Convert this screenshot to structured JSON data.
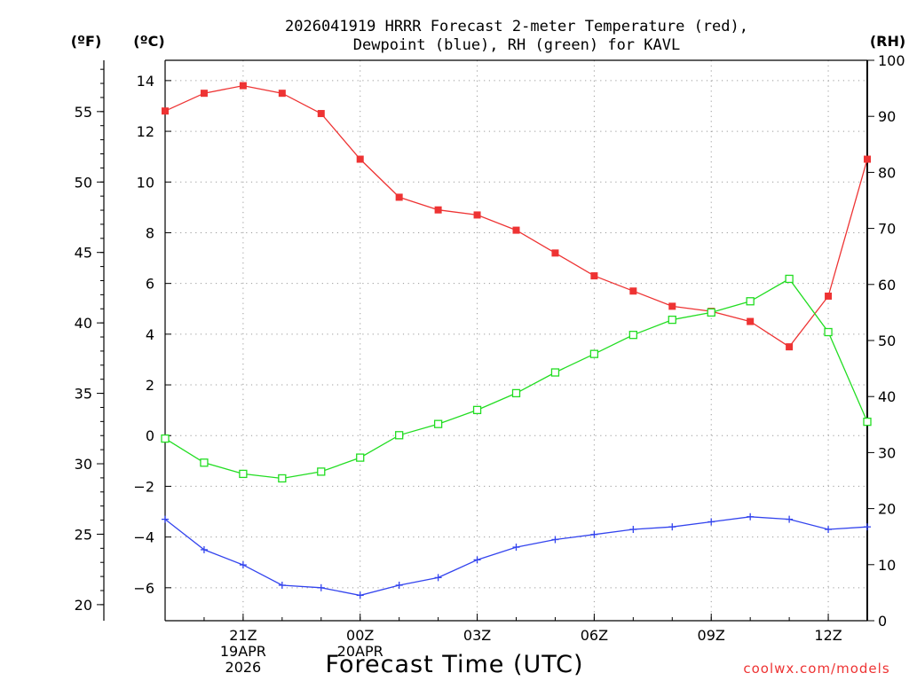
{
  "chart_data": {
    "type": "line",
    "title_line1": "2026041919 HRRR Forecast 2-meter Temperature (red),",
    "title_line2": "Dewpoint (blue), RH (green) for KAVL",
    "xlabel": "Forecast Time (UTC)",
    "watermark": "coolwx.com/models",
    "left_outer_unit": "(ºF)",
    "left_inner_unit": "(ºC)",
    "right_unit": "(RH)",
    "x_hours": [
      0,
      1,
      2,
      3,
      4,
      5,
      6,
      7,
      8,
      9,
      10,
      11,
      12,
      13,
      14,
      15,
      16,
      17,
      18
    ],
    "x_ticks": [
      {
        "hour": 2,
        "label": "21Z",
        "sub1": "19APR",
        "sub2": "2026"
      },
      {
        "hour": 5,
        "label": "00Z",
        "sub1": "20APR",
        "sub2": ""
      },
      {
        "hour": 8,
        "label": "03Z",
        "sub1": "",
        "sub2": ""
      },
      {
        "hour": 11,
        "label": "06Z",
        "sub1": "",
        "sub2": ""
      },
      {
        "hour": 14,
        "label": "09Z",
        "sub1": "",
        "sub2": ""
      },
      {
        "hour": 17,
        "label": "12Z",
        "sub1": "",
        "sub2": ""
      }
    ],
    "celsius_ticks": [
      "−6",
      "−4",
      "−2",
      "0",
      "2",
      "4",
      "6",
      "8",
      "10",
      "12",
      "14"
    ],
    "celsius_tick_values": [
      -6,
      -4,
      -2,
      0,
      2,
      4,
      6,
      8,
      10,
      12,
      14
    ],
    "fahrenheit_ticks": [
      "20",
      "25",
      "30",
      "35",
      "40",
      "45",
      "50",
      "55"
    ],
    "fahrenheit_tick_values": [
      20,
      25,
      30,
      35,
      40,
      45,
      50,
      55
    ],
    "rh_ticks": [
      "0",
      "10",
      "20",
      "30",
      "40",
      "50",
      "60",
      "70",
      "80",
      "90",
      "100"
    ],
    "rh_tick_values": [
      0,
      10,
      20,
      30,
      40,
      50,
      60,
      70,
      80,
      90,
      100
    ],
    "ylim_c": [
      -7.3,
      14.8
    ],
    "ylim_rh": [
      0,
      100
    ],
    "grid": true,
    "colors": {
      "temperature": "#ee3333",
      "dewpoint": "#3344ee",
      "rh": "#22dd22"
    },
    "series": [
      {
        "key": "temperature",
        "axis": "C",
        "marker": "filled-square",
        "values": [
          12.8,
          13.5,
          13.8,
          13.5,
          12.7,
          10.9,
          9.4,
          8.9,
          8.7,
          8.1,
          7.2,
          6.3,
          5.7,
          5.1,
          4.9,
          4.5,
          3.5,
          5.5,
          10.9
        ]
      },
      {
        "key": "dewpoint",
        "axis": "C",
        "marker": "plus",
        "values": [
          -3.3,
          -4.5,
          -5.1,
          -5.9,
          -6.0,
          -6.3,
          -5.9,
          -5.6,
          -4.9,
          -4.4,
          -4.1,
          -3.9,
          -3.7,
          -3.6,
          -3.4,
          -3.2,
          -3.3,
          -3.7,
          -3.6
        ]
      },
      {
        "key": "rh",
        "axis": "RH",
        "marker": "open-square",
        "values": [
          32.5,
          28.2,
          26.2,
          25.4,
          26.6,
          29.1,
          33.1,
          35.1,
          37.6,
          40.6,
          44.3,
          47.6,
          51.0,
          53.7,
          55.0,
          57.0,
          61.0,
          51.5,
          35.5
        ]
      }
    ]
  }
}
